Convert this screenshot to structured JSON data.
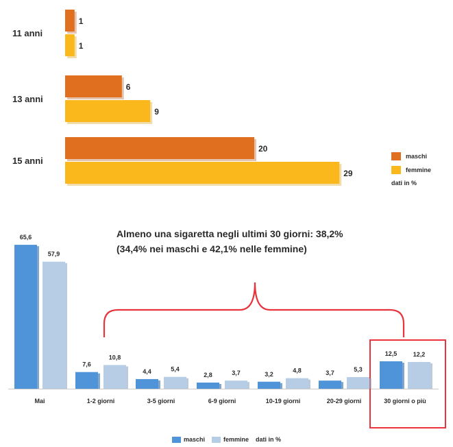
{
  "colors": {
    "maschi_top": "#e07020",
    "femmine_top": "#fbb81c",
    "maschi_bottom": "#4f93d9",
    "femmine_bottom": "#b7cde6",
    "highlight": "#e8323c"
  },
  "chart_data": [
    {
      "type": "bar",
      "orientation": "horizontal",
      "categories": [
        "11 anni",
        "13 anni",
        "15 anni"
      ],
      "series": [
        {
          "name": "maschi",
          "values": [
            1,
            6,
            20
          ]
        },
        {
          "name": "femmine",
          "values": [
            1,
            9,
            29
          ]
        }
      ],
      "legend": {
        "items": [
          "maschi",
          "femmine"
        ],
        "note": "dati in %",
        "placement": "right"
      },
      "grid": false
    },
    {
      "type": "bar",
      "categories": [
        "Mai",
        "1-2 giorni",
        "3-5 giorni",
        "6-9 giorni",
        "10-19 giorni",
        "20-29 giorni",
        "30 giorni o più"
      ],
      "series": [
        {
          "name": "maschi",
          "values": [
            65.6,
            7.6,
            4.4,
            2.8,
            3.2,
            3.7,
            12.5
          ],
          "labels": [
            "65,6",
            "7,6",
            "4,4",
            "2,8",
            "3,2",
            "3,7",
            "12,5"
          ]
        },
        {
          "name": "femmine",
          "values": [
            57.9,
            10.8,
            5.4,
            3.7,
            4.8,
            5.3,
            12.2
          ],
          "labels": [
            "57,9",
            "10,8",
            "5,4",
            "3,7",
            "4,8",
            "5,3",
            "12,2"
          ]
        }
      ],
      "annotation": {
        "line1": "Almeno una sigaretta negli ultimi 30 giorni: 38,2%",
        "line2": "(34,4% nei maschi e 42,1% nelle femmine)"
      },
      "highlighted_category": "30 giorni o più",
      "legend": {
        "items": [
          "maschi",
          "femmine"
        ],
        "note": "dati in %",
        "placement": "bottom"
      },
      "grid": false
    }
  ]
}
